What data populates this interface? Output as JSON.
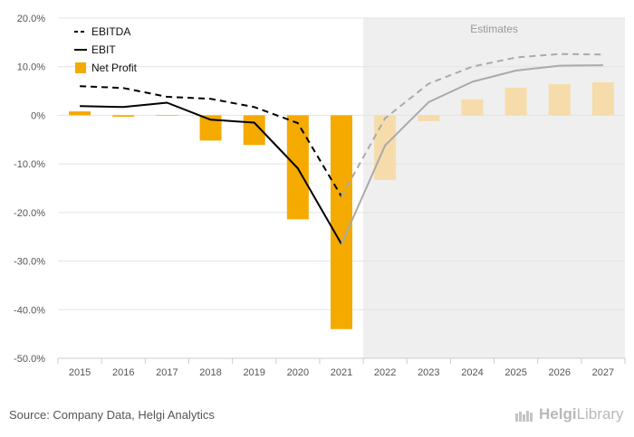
{
  "chart_data": {
    "type": "bar",
    "x": [
      "2015",
      "2016",
      "2017",
      "2018",
      "2019",
      "2020",
      "2021",
      "2022",
      "2023",
      "2024",
      "2025",
      "2026",
      "2027"
    ],
    "estimate_start_index": 7,
    "estimates_label": "Estimates",
    "ylim": [
      -50,
      20
    ],
    "yticks": [
      20,
      10,
      0,
      -10,
      -20,
      -30,
      -40,
      -50
    ],
    "ytick_labels": [
      "20.0%",
      "10.0%",
      "0%",
      "-10.0%",
      "-20.0%",
      "-30.0%",
      "-40.0%",
      "-50.0%"
    ],
    "series": [
      {
        "name": "EBITDA",
        "kind": "line",
        "style": "dashed",
        "color": "#000000",
        "estimate_color": "#aaaaaa",
        "values": [
          6.0,
          5.6,
          3.8,
          3.4,
          1.7,
          -1.6,
          -16.7,
          -0.6,
          6.5,
          10.0,
          11.9,
          12.6,
          12.5
        ]
      },
      {
        "name": "EBIT",
        "kind": "line",
        "style": "solid",
        "color": "#000000",
        "estimate_color": "#aaaaaa",
        "values": [
          1.9,
          1.7,
          2.6,
          -0.9,
          -1.5,
          -10.9,
          -26.5,
          -6.2,
          2.7,
          6.9,
          9.2,
          10.2,
          10.3
        ]
      },
      {
        "name": "Net Profit",
        "kind": "bar",
        "color": "#f5aa00",
        "estimate_color": "#f6dcaa",
        "values": [
          0.8,
          -0.3,
          -0.1,
          -5.2,
          -6.1,
          -21.4,
          -44.0,
          -13.3,
          -1.2,
          3.3,
          5.7,
          6.4,
          6.8
        ]
      }
    ],
    "legend_position": "top-left",
    "grid": true
  },
  "footer": {
    "source": "Source: Company Data, Helgi Analytics",
    "brand_prefix": "Helgi",
    "brand_suffix": "Library"
  }
}
